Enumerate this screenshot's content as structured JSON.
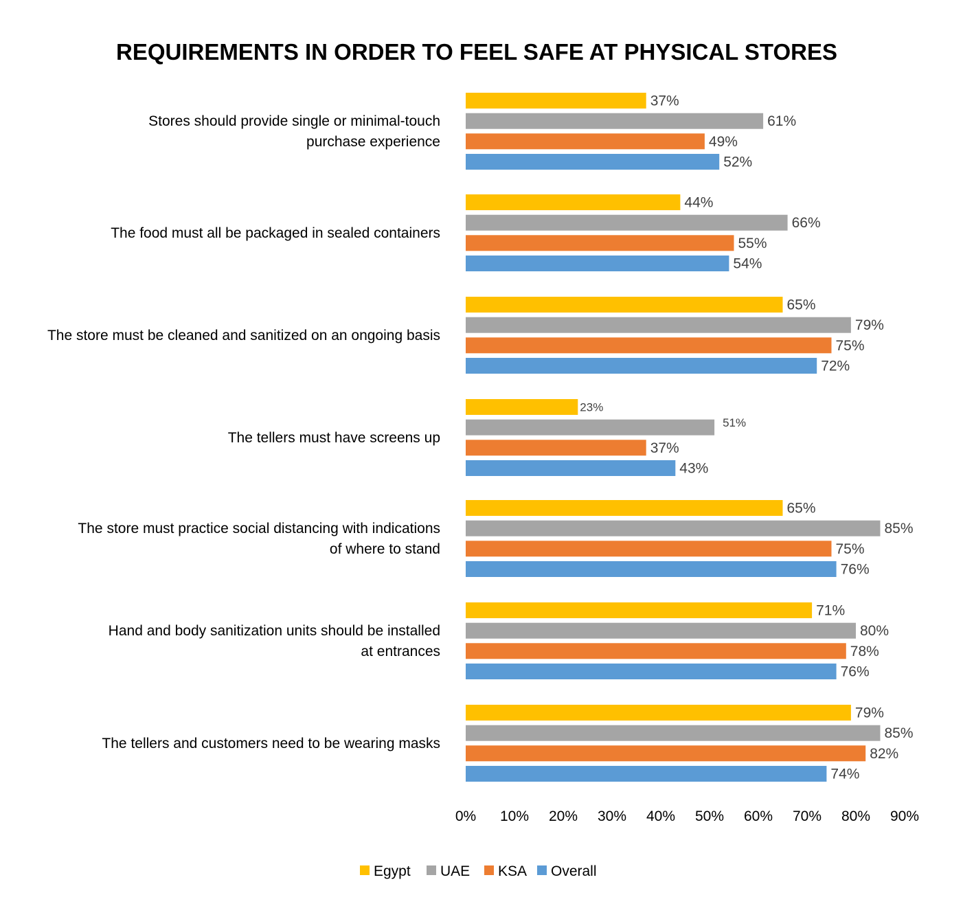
{
  "chart_data": {
    "type": "bar",
    "orientation": "horizontal",
    "title": "REQUIREMENTS IN ORDER TO FEEL SAFE AT PHYSICAL STORES",
    "categories": [
      [
        "Stores should provide single or minimal-touch",
        "purchase experience"
      ],
      [
        "The food must all be packaged in sealed containers"
      ],
      [
        "The store must be cleaned and sanitized on an ongoing basis"
      ],
      [
        "The tellers must have screens up"
      ],
      [
        "The store must practice social distancing with indications",
        "of where to stand"
      ],
      [
        "Hand and body sanitization units should be installed",
        "at entrances"
      ],
      [
        "The tellers and customers need to be wearing masks"
      ]
    ],
    "series": [
      {
        "name": "Egypt",
        "color": "#FFC000",
        "values": [
          37,
          44,
          65,
          23,
          65,
          71,
          79
        ],
        "labels": [
          "37%",
          "44%",
          "65%",
          "23%",
          "65%",
          "71%",
          "79%"
        ]
      },
      {
        "name": "UAE",
        "color": "#A5A5A5",
        "values": [
          61,
          66,
          79,
          51,
          85,
          80,
          85
        ],
        "labels": [
          "61%",
          "66%",
          "79%",
          "51%",
          "85%",
          "80%",
          "85%"
        ]
      },
      {
        "name": "KSA",
        "color": "#ED7D31",
        "values": [
          49,
          55,
          75,
          37,
          75,
          78,
          82
        ],
        "labels": [
          "49%",
          "55%",
          "75%",
          "37%",
          "75%",
          "78%",
          "82%"
        ]
      },
      {
        "name": "Overall",
        "color": "#5B9BD5",
        "values": [
          52,
          54,
          72,
          43,
          76,
          76,
          74
        ],
        "labels": [
          "52%",
          "54%",
          "72%",
          "43%",
          "76%",
          "76%",
          "74%"
        ]
      }
    ],
    "xlim": [
      0,
      90
    ],
    "xticks": [
      "0%",
      "10%",
      "20%",
      "30%",
      "40%",
      "50%",
      "60%",
      "70%",
      "80%",
      "90%"
    ],
    "grid": false,
    "legend_position": "bottom"
  }
}
